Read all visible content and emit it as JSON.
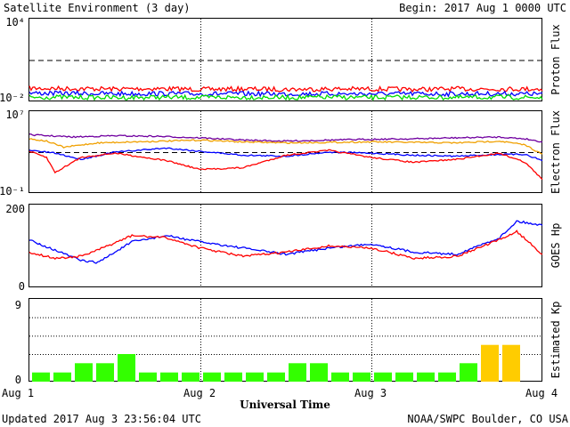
{
  "header": {
    "title": "Satellite Environment (3 day)",
    "begin": "Begin:  2017 Aug 1 0000 UTC"
  },
  "footer": {
    "updated": "Updated 2017 Aug  3 23:56:04 UTC",
    "credit": "NOAA/SWPC Boulder, CO USA"
  },
  "xaxis": {
    "label": "Universal Time",
    "ticks": [
      "Aug 1",
      "Aug 2",
      "Aug 3",
      "Aug 4"
    ],
    "range_days": [
      0,
      3
    ]
  },
  "colors": {
    "red": "#ff0000",
    "blue": "#0000ff",
    "green": "#00dd00",
    "orange": "#f0a000",
    "purple": "#7000a0",
    "kp_green": "#33ff00",
    "kp_yellow": "#ffcc00"
  },
  "chart_data": [
    {
      "type": "line",
      "ylabel": "Proton Flux",
      "yscale": "log",
      "ylim": [
        0.01,
        10000
      ],
      "ytick_labels": [
        "10⁴",
        "10⁻²"
      ],
      "threshold": 10,
      "series": [
        {
          "color": "red",
          "x": [
            0,
            0.25,
            0.5,
            0.75,
            1,
            1.25,
            1.5,
            1.75,
            2,
            2.25,
            2.5,
            2.75,
            3
          ],
          "y": [
            0.09,
            0.085,
            0.08,
            0.085,
            0.075,
            0.08,
            0.075,
            0.08,
            0.08,
            0.075,
            0.08,
            0.08,
            0.08
          ]
        },
        {
          "color": "blue",
          "x": [
            0,
            0.25,
            0.5,
            0.75,
            1,
            1.25,
            1.5,
            1.75,
            2,
            2.25,
            2.5,
            2.75,
            3
          ],
          "y": [
            0.04,
            0.038,
            0.036,
            0.037,
            0.035,
            0.036,
            0.035,
            0.036,
            0.035,
            0.036,
            0.035,
            0.036,
            0.035
          ]
        },
        {
          "color": "green",
          "x": [
            0,
            0.25,
            0.5,
            0.75,
            1,
            1.25,
            1.5,
            1.75,
            2,
            2.25,
            2.5,
            2.75,
            3
          ],
          "y": [
            0.02,
            0.02,
            0.019,
            0.02,
            0.019,
            0.02,
            0.019,
            0.02,
            0.019,
            0.02,
            0.019,
            0.02,
            0.019
          ]
        }
      ]
    },
    {
      "type": "line",
      "ylabel": "Electron Flux",
      "yscale": "log",
      "ylim": [
        0.1,
        10000000
      ],
      "ytick_labels": [
        "10⁷",
        "10⁻¹"
      ],
      "threshold": 1000,
      "series": [
        {
          "color": "purple",
          "x": [
            0,
            0.25,
            0.5,
            0.75,
            1,
            1.25,
            1.5,
            1.75,
            2,
            2.25,
            2.5,
            2.75,
            2.9,
            3
          ],
          "y": [
            50000,
            30000,
            40000,
            35000,
            25000,
            15000,
            12000,
            15000,
            18000,
            20000,
            25000,
            30000,
            20000,
            10000
          ]
        },
        {
          "color": "orange",
          "x": [
            0,
            0.1,
            0.2,
            0.4,
            0.6,
            0.8,
            1,
            1.25,
            1.5,
            1.75,
            2,
            2.25,
            2.5,
            2.75,
            2.9,
            3
          ],
          "y": [
            20000,
            12000,
            3000,
            8000,
            10000,
            12000,
            15000,
            10000,
            8000,
            9000,
            10000,
            9000,
            8000,
            12000,
            5000,
            600
          ]
        },
        {
          "color": "blue",
          "x": [
            0,
            0.15,
            0.3,
            0.5,
            0.8,
            1.0,
            1.25,
            1.5,
            1.75,
            2.0,
            2.25,
            2.5,
            2.75,
            2.9,
            3
          ],
          "y": [
            1500,
            800,
            200,
            1000,
            2500,
            1200,
            500,
            400,
            1000,
            800,
            500,
            400,
            600,
            600,
            150
          ]
        },
        {
          "color": "red",
          "x": [
            0,
            0.1,
            0.15,
            0.3,
            0.5,
            0.8,
            1.0,
            1.25,
            1.5,
            1.75,
            2.0,
            2.25,
            2.5,
            2.75,
            2.9,
            3
          ],
          "y": [
            1200,
            300,
            10,
            300,
            800,
            150,
            20,
            30,
            500,
            1500,
            300,
            100,
            200,
            800,
            100,
            2
          ]
        }
      ]
    },
    {
      "type": "line",
      "ylabel": "GOES Hp",
      "ylim": [
        0,
        200
      ],
      "ytick_labels": [
        "200",
        "0"
      ],
      "series": [
        {
          "color": "blue",
          "x": [
            0,
            0.15,
            0.3,
            0.4,
            0.6,
            0.8,
            1.0,
            1.25,
            1.5,
            1.75,
            2.0,
            2.25,
            2.5,
            2.75,
            2.85,
            3
          ],
          "y": [
            115,
            90,
            65,
            60,
            110,
            125,
            110,
            95,
            80,
            95,
            105,
            85,
            80,
            120,
            160,
            150
          ]
        },
        {
          "color": "red",
          "x": [
            0,
            0.15,
            0.3,
            0.4,
            0.6,
            0.8,
            1.0,
            1.25,
            1.5,
            1.75,
            2.0,
            2.25,
            2.5,
            2.75,
            2.85,
            3
          ],
          "y": [
            85,
            70,
            75,
            90,
            125,
            120,
            95,
            75,
            85,
            100,
            95,
            70,
            75,
            115,
            135,
            80
          ]
        }
      ]
    },
    {
      "type": "bar",
      "ylabel": "Estimated Kp",
      "ylim": [
        0,
        9
      ],
      "ytick_labels": [
        "9",
        "0"
      ],
      "values": [
        1,
        1,
        2,
        2,
        3,
        1,
        1,
        1,
        1,
        1,
        1,
        1,
        2,
        2,
        1,
        1,
        1,
        1,
        1,
        1,
        2,
        4,
        4,
        0
      ]
    }
  ]
}
